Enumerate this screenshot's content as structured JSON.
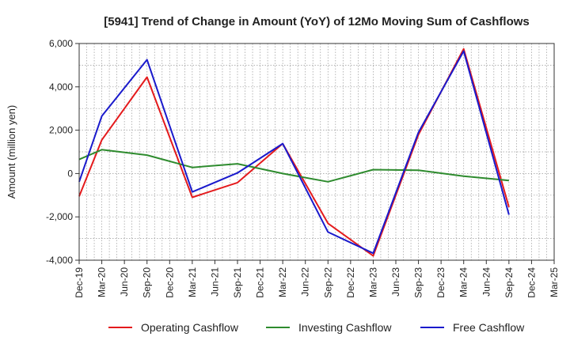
{
  "chart_data": {
    "type": "line",
    "title": "[5941]  Trend of Change in Amount (YoY) of 12Mo Moving Sum of Cashflows",
    "xlabel": "",
    "ylabel": "Amount (million yen)",
    "ylim": [
      -4000,
      6000
    ],
    "yticks": [
      -4000,
      -2000,
      0,
      2000,
      4000,
      6000
    ],
    "ytick_labels": [
      "-4,000",
      "-2,000",
      "0",
      "2,000",
      "4,000",
      "6,000"
    ],
    "categories": [
      "Dec-19",
      "Mar-20",
      "Jun-20",
      "Sep-20",
      "Dec-20",
      "Mar-21",
      "Jun-21",
      "Sep-21",
      "Dec-21",
      "Mar-22",
      "Jun-22",
      "Sep-22",
      "Dec-22",
      "Mar-23",
      "Jun-23",
      "Sep-23",
      "Dec-23",
      "Mar-24",
      "Jun-24",
      "Sep-24",
      "Dec-24",
      "Mar-25"
    ],
    "series": [
      {
        "name": "Operating Cashflow",
        "color": "#e41a1c",
        "values": [
          -1050,
          1550,
          null,
          4450,
          null,
          -1100,
          null,
          -420,
          null,
          1380,
          null,
          -2300,
          null,
          -3800,
          null,
          1800,
          null,
          5750,
          null,
          -1550,
          null,
          null
        ]
      },
      {
        "name": "Investing Cashflow",
        "color": "#2e8b2e",
        "values": [
          650,
          1100,
          null,
          850,
          null,
          280,
          null,
          450,
          null,
          0,
          null,
          -380,
          null,
          180,
          null,
          150,
          null,
          -120,
          null,
          -320,
          null,
          null
        ]
      },
      {
        "name": "Free Cashflow",
        "color": "#1a1acc",
        "values": [
          -380,
          2650,
          null,
          5250,
          null,
          -850,
          null,
          30,
          null,
          1380,
          null,
          -2700,
          null,
          -3680,
          null,
          1900,
          null,
          5650,
          null,
          -1900,
          null,
          null
        ]
      }
    ],
    "grid": true,
    "legend_position": "bottom"
  }
}
